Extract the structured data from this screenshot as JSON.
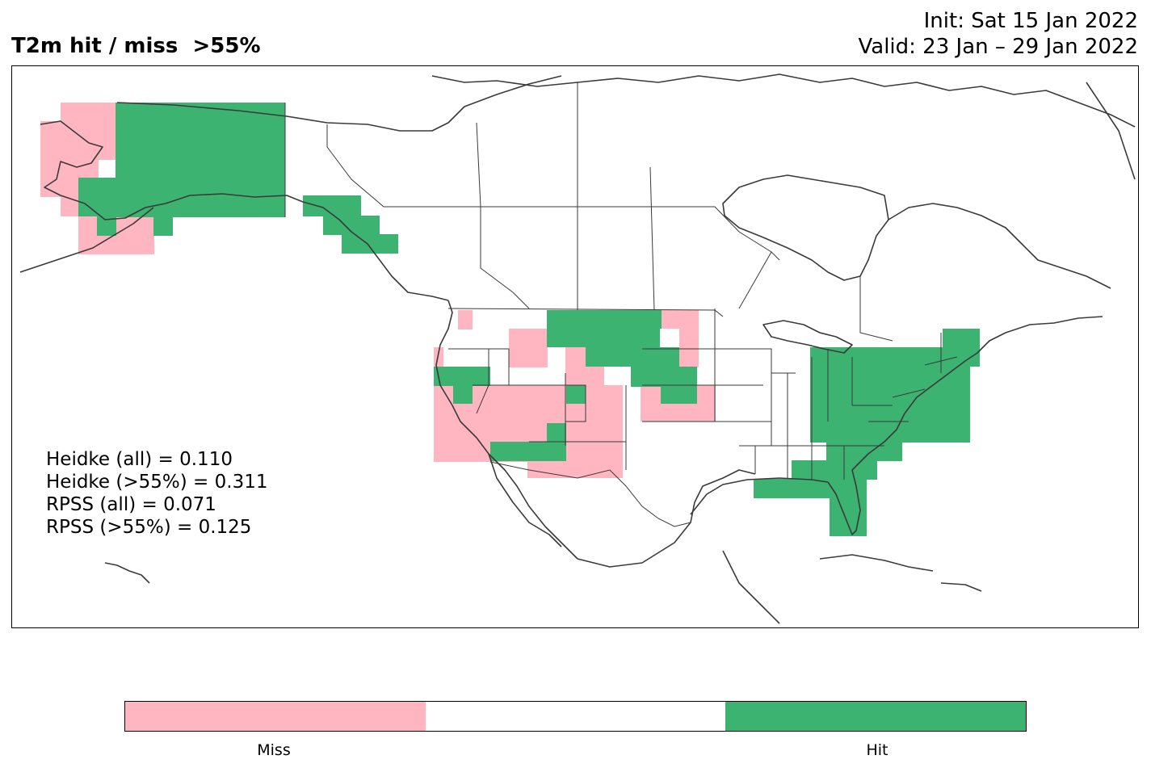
{
  "title": "T2m hit / miss  >55%",
  "init_line": "Init: Sat 15 Jan 2022",
  "valid_line": "Valid: 23 Jan – 29 Jan 2022",
  "stats": {
    "heidke_all": "Heidke (all) = 0.110",
    "heidke_55": "Heidke (>55%) = 0.311",
    "rpss_all": "RPSS (all) = 0.071",
    "rpss_55": "RPSS (>55%) = 0.125"
  },
  "colors": {
    "miss": "#ffb6c1",
    "none": "#ffffff",
    "hit": "#3cb371"
  },
  "colorbar": {
    "miss_label": "Miss",
    "hit_label": "Hit"
  },
  "map": {
    "region": "North America",
    "hit_regions": [
      "Alaska interior",
      "Alaska panhandle",
      "Montana / Dakotas",
      "Nebraska",
      "Southern Nevada / Arizona",
      "Eastern United States",
      "Northeast",
      "Florida",
      "Gulf Coast"
    ],
    "miss_regions": [
      "Western Alaska",
      "Alaska Peninsula",
      "Idaho / Oregon",
      "Nevada / Utah",
      "Arizona / New Mexico",
      "Kansas",
      "Eastern Dakotas"
    ]
  }
}
